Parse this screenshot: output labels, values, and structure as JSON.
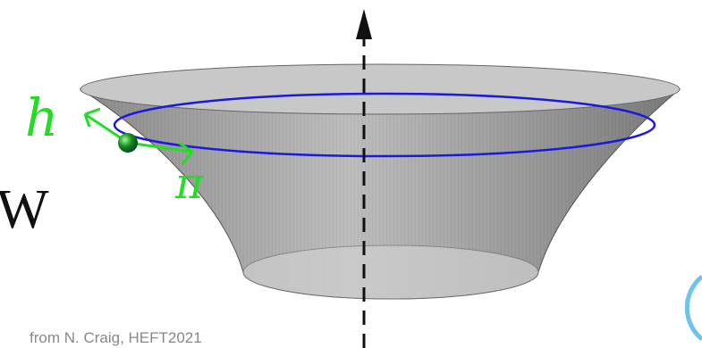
{
  "labels": {
    "h": "h",
    "pi": "π",
    "w": "W"
  },
  "caption": "from N. Craig, HEFT2021"
}
